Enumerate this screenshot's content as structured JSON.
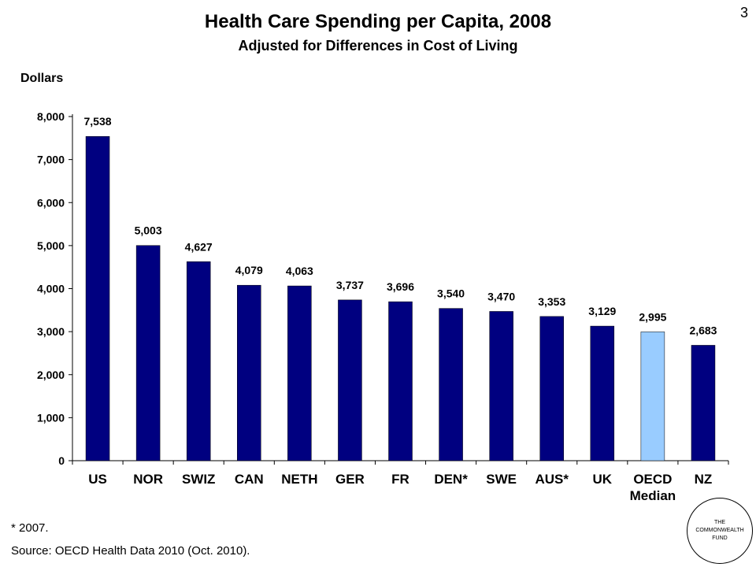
{
  "slide_number": "3",
  "footnote": "* 2007.",
  "source": "Source: OECD Health Data 2010 (Oct. 2010).",
  "logo": {
    "lines": [
      "THE",
      "COMMONWEALTH",
      "FUND"
    ]
  },
  "colors": {
    "bar": "#000080",
    "highlight": "#99ccff",
    "axis": "#000000"
  },
  "chart_data": {
    "type": "bar",
    "title": "Health Care Spending per Capita, 2008",
    "subtitle": "Adjusted for Differences in Cost of Living",
    "ylabel": "Dollars",
    "xlabel": "",
    "ylim": [
      0,
      8000
    ],
    "y_ticks": [
      "0",
      "1,000",
      "2,000",
      "3,000",
      "4,000",
      "5,000",
      "6,000",
      "7,000",
      "8,000"
    ],
    "grid": false,
    "legend": "none",
    "categories": [
      "US",
      "NOR",
      "SWIZ",
      "CAN",
      "NETH",
      "GER",
      "FR",
      "DEN*",
      "SWE",
      "AUS*",
      "UK",
      "OECD\nMedian",
      "NZ"
    ],
    "values": [
      7538,
      5003,
      4627,
      4079,
      4063,
      3737,
      3696,
      3540,
      3470,
      3353,
      3129,
      2995,
      2683
    ],
    "data_labels": [
      "7,538",
      "5,003",
      "4,627",
      "4,079",
      "4,063",
      "3,737",
      "3,696",
      "3,540",
      "3,470",
      "3,353",
      "3,129",
      "2,995",
      "2,683"
    ],
    "highlight_index": 11
  }
}
